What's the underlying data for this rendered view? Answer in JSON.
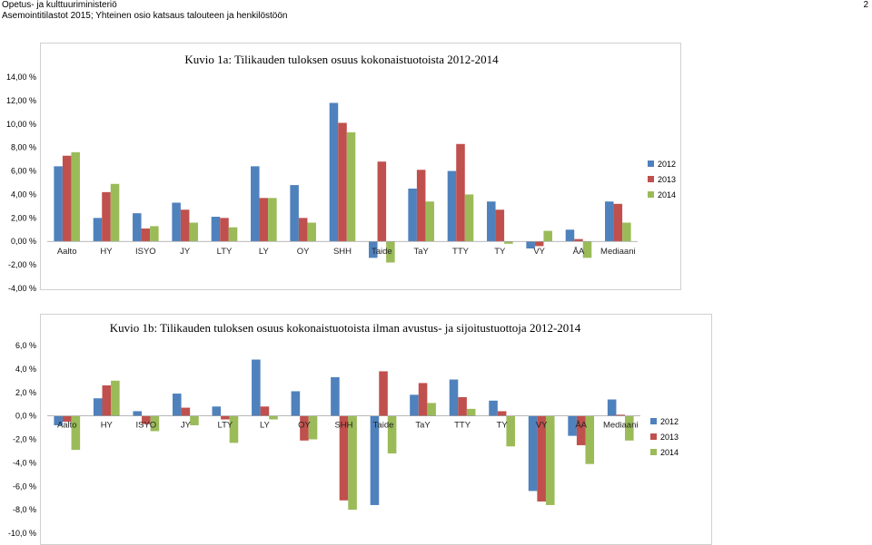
{
  "header": {
    "line1": "Opetus- ja kulttuuriministeriö",
    "line2": "Asemointitilastot 2015; Yhteinen osio katsaus talouteen ja henkilöstöön",
    "page_number": "2"
  },
  "colors": {
    "series_2012": "#4f81bd",
    "series_2013": "#c0504d",
    "series_2014": "#9bbb59"
  },
  "chart_data": [
    {
      "type": "bar",
      "title": "Kuvio 1a: Tilikauden tuloksen osuus kokonaistuotoista 2012-2014",
      "categories": [
        "Aalto",
        "HY",
        "ISYO",
        "JY",
        "LTY",
        "LY",
        "OY",
        "SHH",
        "Taide",
        "TaY",
        "TTY",
        "TY",
        "VY",
        "ÅA",
        "Mediaani"
      ],
      "series": [
        {
          "name": "2012",
          "values": [
            6.4,
            2.0,
            2.4,
            3.3,
            2.1,
            6.4,
            4.8,
            11.8,
            -1.4,
            4.5,
            6.0,
            3.4,
            -0.6,
            1.0,
            3.4
          ]
        },
        {
          "name": "2013",
          "values": [
            7.3,
            4.2,
            1.1,
            2.7,
            2.0,
            3.7,
            2.0,
            10.1,
            6.8,
            6.1,
            8.3,
            2.7,
            -0.4,
            0.2,
            3.2
          ]
        },
        {
          "name": "2014",
          "values": [
            7.6,
            4.9,
            1.3,
            1.6,
            1.2,
            3.7,
            1.6,
            9.3,
            -1.8,
            3.4,
            4.0,
            -0.2,
            0.9,
            -1.4,
            1.6
          ]
        }
      ],
      "ylim": [
        -4,
        14
      ],
      "yticks": [
        "14,00 %",
        "12,00 %",
        "10,00 %",
        "8,00 %",
        "6,00 %",
        "4,00 %",
        "2,00 %",
        "0,00 %",
        "-2,00 %",
        "-4,00 %"
      ],
      "legend_position": "right"
    },
    {
      "type": "bar",
      "title": "Kuvio 1b: Tilikauden tuloksen osuus kokonaistuotoista ilman avustus- ja sijoitustuottoja 2012-2014",
      "categories": [
        "Aalto",
        "HY",
        "ISYO",
        "JY",
        "LTY",
        "LY",
        "OY",
        "SHH",
        "Taide",
        "TaY",
        "TTY",
        "TY",
        "VY",
        "ÅA",
        "Mediaani"
      ],
      "series": [
        {
          "name": "2012",
          "values": [
            -0.8,
            1.5,
            0.4,
            1.9,
            0.8,
            4.8,
            2.1,
            3.3,
            -7.6,
            1.8,
            3.1,
            1.3,
            -6.4,
            -1.7,
            1.4
          ]
        },
        {
          "name": "2013",
          "values": [
            -0.5,
            2.6,
            -0.7,
            0.7,
            -0.3,
            0.8,
            -2.1,
            -7.2,
            3.8,
            2.8,
            1.6,
            0.4,
            -7.3,
            -2.5,
            0.1
          ]
        },
        {
          "name": "2014",
          "values": [
            -2.9,
            3.0,
            -1.3,
            -0.8,
            -2.3,
            -0.3,
            -2.0,
            -8.0,
            -3.2,
            1.1,
            0.6,
            -2.6,
            -7.6,
            -4.1,
            -2.1
          ]
        }
      ],
      "ylim": [
        -10,
        6
      ],
      "yticks": [
        "6,0 %",
        "4,0 %",
        "2,0 %",
        "0,0 %",
        "-2,0 %",
        "-4,0 %",
        "-6,0 %",
        "-8,0 %",
        "-10,0 %"
      ],
      "legend_position": "right"
    }
  ]
}
